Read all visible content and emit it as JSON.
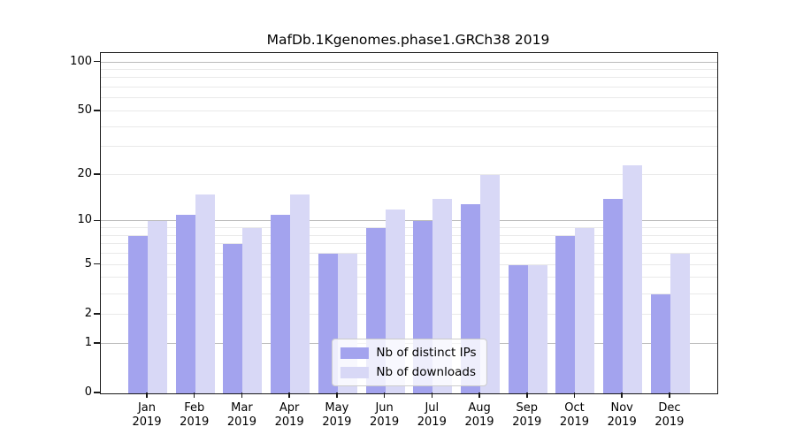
{
  "chart_data": {
    "type": "bar",
    "title": "MafDb.1Kgenomes.phase1.GRCh38 2019",
    "categories": [
      "Jan",
      "Feb",
      "Mar",
      "Apr",
      "May",
      "Jun",
      "Jul",
      "Aug",
      "Sep",
      "Oct",
      "Nov",
      "Dec"
    ],
    "year": "2019",
    "series": [
      {
        "name": "Nb of distinct IPs",
        "color": "#a3a3ee",
        "values": [
          8,
          11,
          7,
          11,
          6,
          9,
          10,
          13,
          5,
          8,
          14,
          3
        ]
      },
      {
        "name": "Nb of downloads",
        "color": "#d8d8f6",
        "values": [
          10,
          15,
          9,
          15,
          6,
          12,
          14,
          20,
          5,
          9,
          23,
          6
        ]
      }
    ],
    "yscale": "log1p",
    "ylim": [
      0,
      114
    ],
    "yticks": [
      0,
      1,
      2,
      5,
      10,
      20,
      50,
      100
    ],
    "major_gridlines": [
      1,
      10,
      100
    ],
    "minor_gridlines": [
      2,
      3,
      4,
      5,
      6,
      7,
      8,
      9,
      20,
      30,
      40,
      50,
      60,
      70,
      80,
      90
    ],
    "grid": "on",
    "legend_position": "lower center"
  },
  "colors": {
    "spine": "#1a1a1a",
    "major_grid": "#bbbbbb",
    "minor_grid": "#e9e9e9",
    "legend_border": "#cccccc"
  }
}
